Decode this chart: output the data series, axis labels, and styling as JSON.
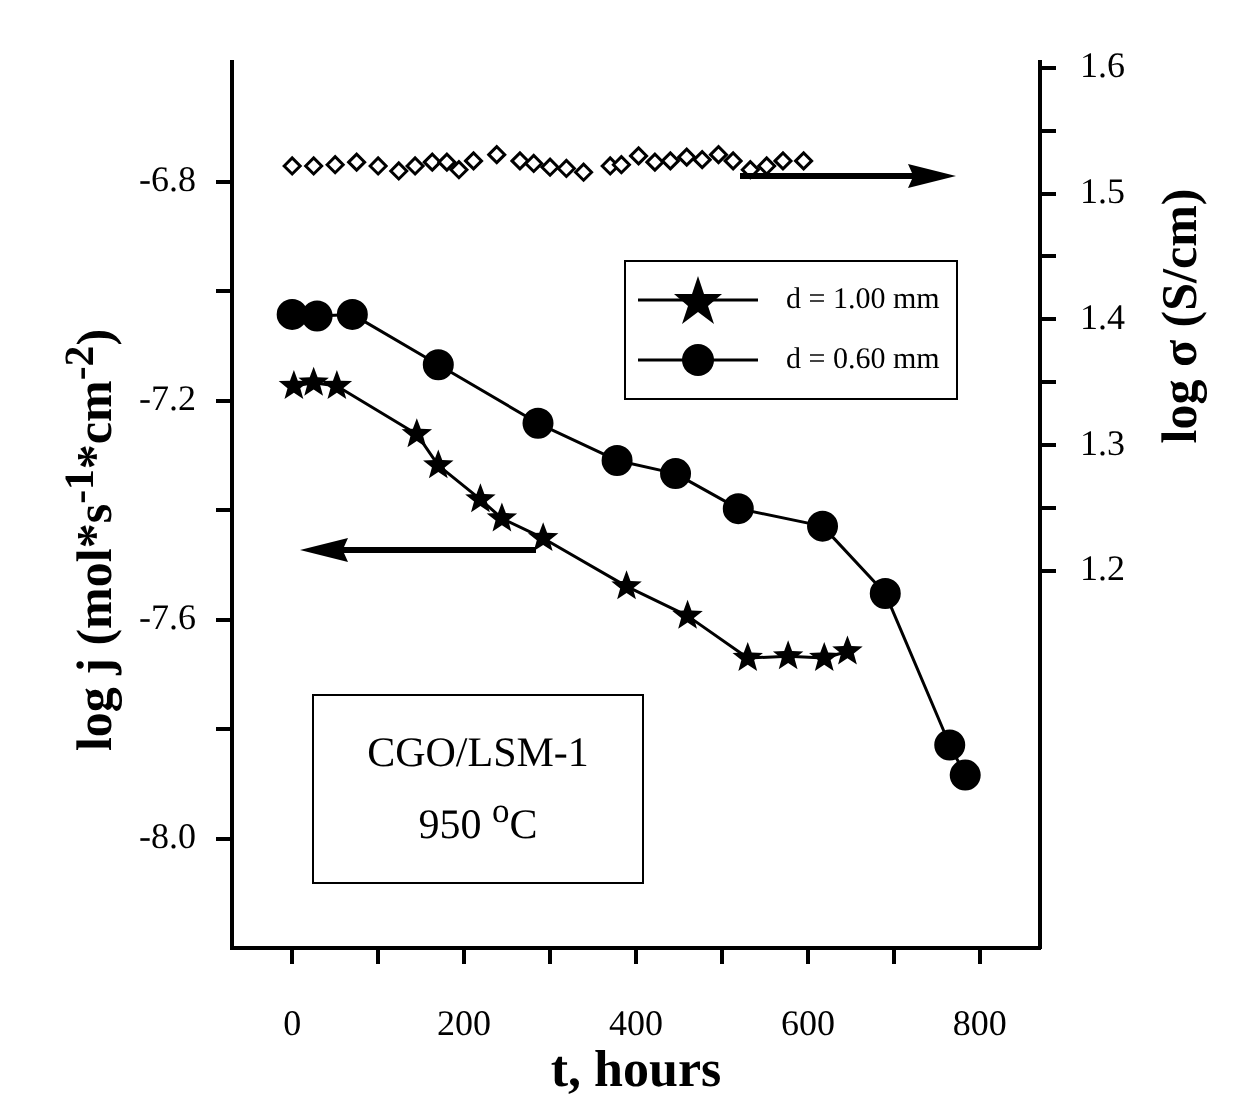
{
  "chart_data": {
    "type": "line",
    "xlabel": "t, hours",
    "ylabel": "log  j  (mol*s$^{-1}$*cm$^{-2}$)",
    "y2label": "log σ (S/cm)",
    "xlim": [
      -70,
      870
    ],
    "xticks": [
      0,
      {
        "value": 100,
        "label": null
      },
      200,
      {
        "value": 300,
        "label": null
      },
      400,
      {
        "value": 500,
        "label": null
      },
      600,
      {
        "value": 700,
        "label": null
      },
      800
    ],
    "ylim": [
      -8.2,
      -6.58
    ],
    "yticks": [
      {
        "value": -8,
        "label": "-8.0"
      },
      {
        "value": -7.8,
        "label": null
      },
      -7.6,
      {
        "value": -7.4,
        "label": null
      },
      -7.2,
      {
        "value": -7,
        "label": null
      },
      -6.8
    ],
    "y2lim": [
      0.9,
      1.605
    ],
    "y2ticks": [
      1.2,
      {
        "value": 1.25,
        "label": null
      },
      1.3,
      {
        "value": 1.35,
        "label": null
      },
      1.4,
      {
        "value": 1.45,
        "label": null
      },
      1.5,
      {
        "value": 1.55,
        "label": null
      },
      1.6
    ],
    "grid": false,
    "legend": "top right",
    "line_style": "solid",
    "annotations": [
      "CGO/LSM-1",
      "950 $^{o}$C"
    ],
    "series": [
      {
        "name": "d = 1.00 mm",
        "color": "#000000",
        "marker": "star",
        "x": [
          2,
          25,
          52,
          145,
          170,
          219,
          244,
          292,
          389,
          460,
          530,
          577,
          619,
          646
        ],
        "values": [
          -7.173,
          -7.167,
          -7.173,
          -7.261,
          -7.318,
          -7.38,
          -7.415,
          -7.451,
          -7.539,
          -7.593,
          -7.67,
          -7.667,
          -7.67,
          -7.658
        ]
      },
      {
        "name": "d = 0.60 mm",
        "color": "#000000",
        "marker": "circle",
        "x": [
          0,
          29,
          70,
          170,
          286,
          378,
          446,
          519,
          617,
          690,
          765,
          783
        ],
        "values": [
          -7.042,
          -7.045,
          -7.042,
          -7.134,
          -7.241,
          -7.309,
          -7.333,
          -7.397,
          -7.429,
          -7.552,
          -7.829,
          -7.884
        ]
      },
      {
        "type": "scatter",
        "axis": "y2",
        "color": "#000000",
        "marker": "diamond",
        "x": [
          0,
          25,
          50,
          75,
          100,
          124,
          143,
          163,
          180,
          194,
          211,
          238,
          265,
          281,
          300,
          319,
          339,
          370,
          383,
          403,
          422,
          440,
          459,
          477,
          496,
          513,
          533,
          552,
          571,
          595
        ],
        "values": [
          1.522,
          1.522,
          1.523,
          1.525,
          1.522,
          1.518,
          1.522,
          1.525,
          1.525,
          1.519,
          1.526,
          1.531,
          1.526,
          1.524,
          1.521,
          1.52,
          1.517,
          1.522,
          1.523,
          1.53,
          1.525,
          1.526,
          1.529,
          1.527,
          1.531,
          1.526,
          1.519,
          1.522,
          1.526,
          1.526
        ]
      }
    ]
  }
}
